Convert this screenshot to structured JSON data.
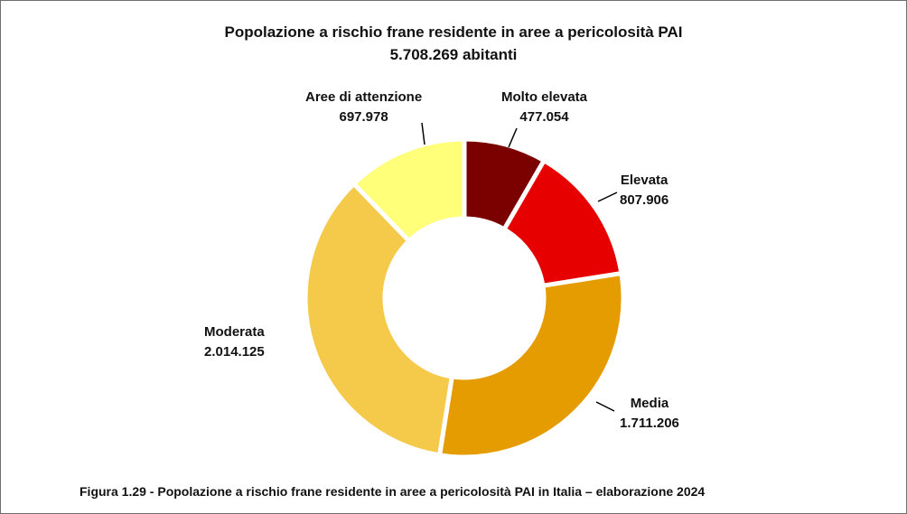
{
  "chart_data": {
    "type": "pie",
    "title": "Popolazione a rischio frane residente in aree a pericolosità PAI",
    "subtitle": "5.708.269 abitanti",
    "slices": [
      {
        "name": "Molto elevata",
        "value": 477054,
        "value_label": "477.054",
        "color": "#7b0000"
      },
      {
        "name": "Elevata",
        "value": 807906,
        "value_label": "807.906",
        "color": "#e60000"
      },
      {
        "name": "Media",
        "value": 1711206,
        "value_label": "1.711.206",
        "color": "#e59c00"
      },
      {
        "name": "Moderata",
        "value": 2014125,
        "value_label": "2.014.125",
        "color": "#f5ca4a"
      },
      {
        "name": "Aree di attenzione",
        "value": 697978,
        "value_label": "697.978",
        "color": "#ffff7a"
      }
    ]
  },
  "caption": "Figura 1.29 - Popolazione a rischio frane residente in aree a pericolosità PAI in Italia – elaborazione 2024"
}
